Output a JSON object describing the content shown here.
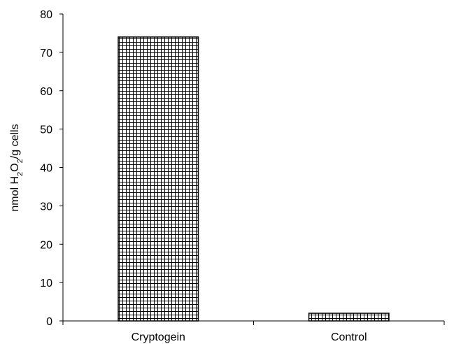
{
  "chart_data": {
    "type": "bar",
    "categories": [
      "Cryptogein",
      "Control"
    ],
    "values": [
      74,
      2
    ],
    "ylabel": {
      "prefix": "nmol H",
      "sub1": "2",
      "mid": "O",
      "sub2": "2",
      "suffix": "/g cells"
    },
    "ylim": [
      0,
      80
    ],
    "yticks": [
      0,
      10,
      20,
      30,
      40,
      50,
      60,
      70,
      80
    ],
    "grid": false,
    "legend": "none",
    "bar_fill": "crosshatch",
    "colors": {
      "bar_stroke": "#000000",
      "hatch": "#000000",
      "background": "#ffffff"
    }
  }
}
